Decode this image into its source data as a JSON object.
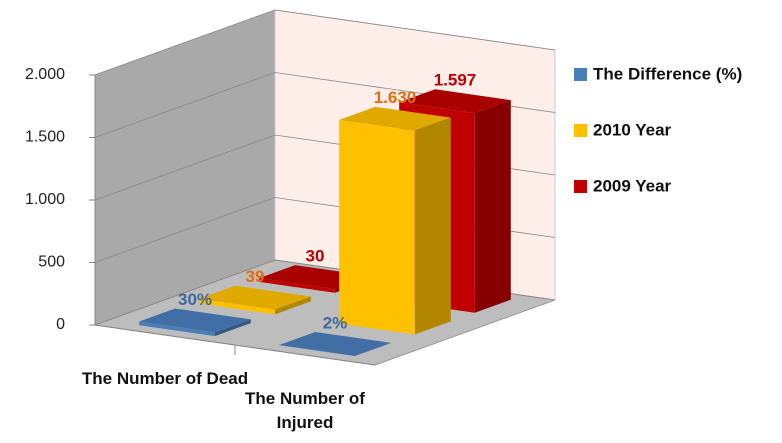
{
  "chart_data": {
    "type": "bar3d",
    "categories": [
      "The Number of Dead",
      "The Number of Injured"
    ],
    "series": [
      {
        "name": "The Difference (%)",
        "color": "#4a7ebb",
        "label_color": "#3d6a9e",
        "values": [
          30,
          2
        ],
        "value_labels": [
          "30%",
          "2%"
        ]
      },
      {
        "name": "2010 Year",
        "color": "#ffc000",
        "label_color": "#e46c0a",
        "values": [
          39,
          1630
        ],
        "value_labels": [
          "39",
          "1.630"
        ]
      },
      {
        "name": "2009 Year",
        "color": "#c00000",
        "label_color": "#c00000",
        "values": [
          30,
          1597
        ],
        "value_labels": [
          "30",
          "1.597"
        ]
      }
    ],
    "ylim": [
      0,
      2000
    ],
    "yticks": [
      0,
      500,
      {
        "value": 1000,
        "label": "1.000"
      },
      {
        "value": 1500,
        "label": "1.500"
      },
      {
        "value": 2000,
        "label": "2.000"
      }
    ],
    "grid": true,
    "legend": "right"
  }
}
